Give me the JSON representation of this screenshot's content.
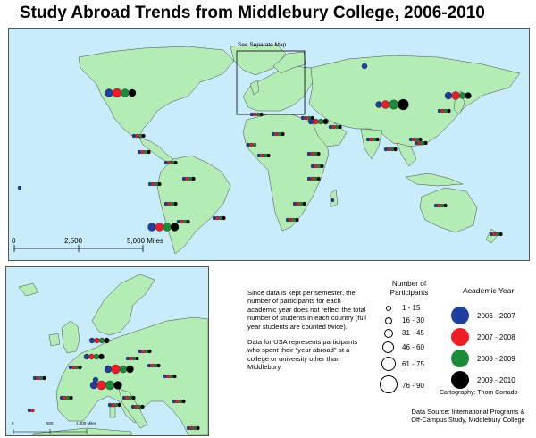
{
  "title": "Study Abroad Trends from Middlebury College, 2006-2010",
  "main_map": {
    "separate_map_label": "See Separate Map",
    "scale_labels": [
      "0",
      "2,500",
      "5,000 Miles"
    ]
  },
  "inset_map": {
    "scale_labels": [
      "0",
      "500",
      "1,000 Miles"
    ]
  },
  "notes": [
    "Since data is kept per semester, the number of participants for each academic year does not reflect the total number of students in each country (full year students are counted twice).",
    "Data for USA represents participants who spent their \"year abroad\" at a college or university other than Middlebury."
  ],
  "participants_legend": {
    "title": "Number of Participants",
    "classes": [
      "1 - 15",
      "16 - 30",
      "31 - 45",
      "46 - 60",
      "61 - 75",
      "76 - 90"
    ]
  },
  "year_legend": {
    "title": "Academic Year",
    "years": [
      {
        "label": "2006 - 2007",
        "color": "#1f3f9e"
      },
      {
        "label": "2007 - 2008",
        "color": "#ee1c24"
      },
      {
        "label": "2008 - 2009",
        "color": "#1b8a3a"
      },
      {
        "label": "2009 - 2010",
        "color": "#000000"
      }
    ]
  },
  "cartography": "Cartography: Thom Corrado",
  "source": [
    "Data Source: International Programs &",
    "Off-Campus Study, Middlebury College"
  ],
  "colors": {
    "ocean": "#c9ecfb",
    "land": "#b4ecb6",
    "land_outline": "#4a4a4a"
  }
}
